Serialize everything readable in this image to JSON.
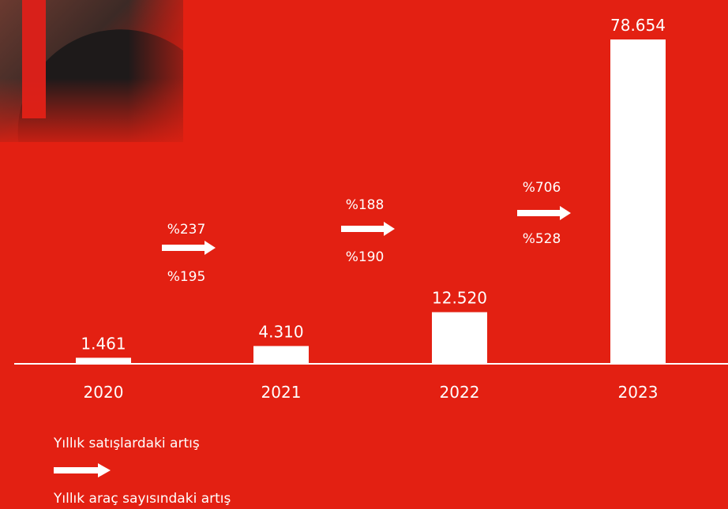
{
  "chart_data": {
    "type": "bar",
    "categories": [
      "2020",
      "2021",
      "2022",
      "2023"
    ],
    "values": [
      1461,
      4310,
      12520,
      78654
    ],
    "value_labels": [
      "1.461",
      "4.310",
      "12.520",
      "78.654"
    ],
    "ylim": [
      0,
      80000
    ],
    "grid": false,
    "title": "",
    "xlabel": "",
    "ylabel": "",
    "growth": [
      {
        "from": "2020",
        "to": "2021",
        "sales_increase": "%237",
        "vehicle_increase": "%195"
      },
      {
        "from": "2021",
        "to": "2022",
        "sales_increase": "%188",
        "vehicle_increase": "%190"
      },
      {
        "from": "2022",
        "to": "2023",
        "sales_increase": "%706",
        "vehicle_increase": "%528"
      }
    ],
    "legend": {
      "sales_label": "Yıllık satışlardaki artış",
      "vehicles_label": "Yıllık araç sayısındaki artış"
    }
  },
  "colors": {
    "background": "#e32012",
    "bar": "#ffffff",
    "text": "#ffffff"
  }
}
